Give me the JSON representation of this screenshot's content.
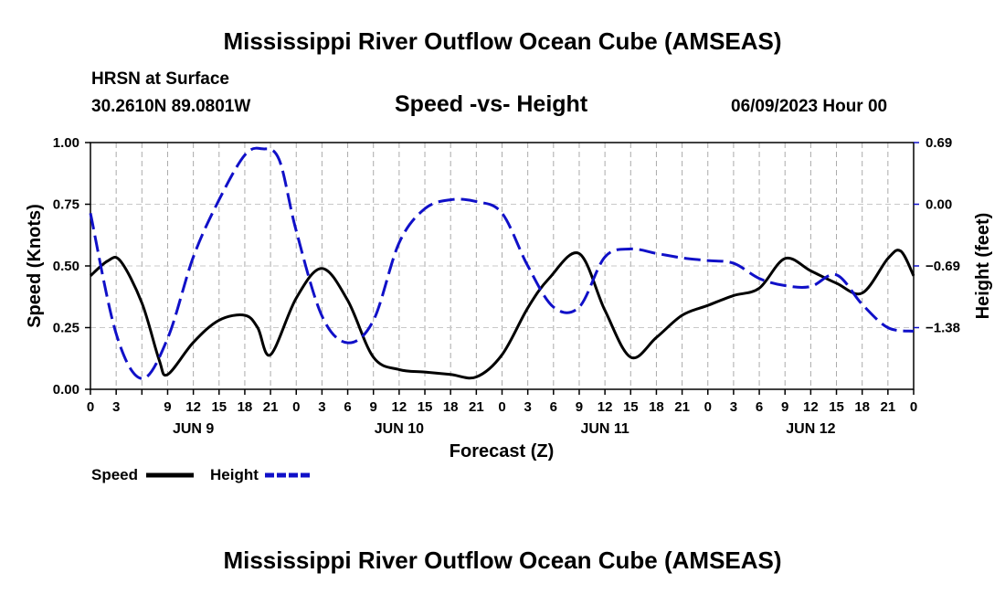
{
  "main_title": "Mississippi River Outflow Ocean Cube (AMSEAS)",
  "footer_title": "Mississippi River Outflow Ocean Cube (AMSEAS)",
  "station": {
    "name": "HRSN at Surface",
    "coords": "30.2610N  89.0801W"
  },
  "run_date": "06/09/2023 Hour 00",
  "colors": {
    "speed": "#000000",
    "height": "#1010c8",
    "grid": "#aaaaaa"
  },
  "chart_data": {
    "type": "line",
    "title": "Speed -vs- Height",
    "xlabel": "Forecast (Z)",
    "ylabel": "Speed (Knots)",
    "y2label": "Height (feet)",
    "x_range": [
      0,
      96
    ],
    "ylim": [
      0,
      1.0
    ],
    "y2lim": [
      -2.07,
      0.69
    ],
    "y_ticks": [
      0,
      0.25,
      0.5,
      0.75,
      1.0
    ],
    "y_tick_labels": [
      "0.00",
      "0.25",
      "0.50",
      "0.75",
      "1.00"
    ],
    "y2_ticks": [
      0.69,
      0.0,
      -0.69,
      -1.38
    ],
    "y2_tick_labels": [
      "0.69",
      "0.00",
      "−0.69",
      "−1.38"
    ],
    "x_tick_labels": [
      "0",
      "3",
      "9",
      "12",
      "15",
      "18",
      "21",
      "0",
      "3",
      "6",
      "9",
      "12",
      "15",
      "18",
      "21",
      "0",
      "3",
      "6",
      "9",
      "12",
      "15",
      "18",
      "21",
      "0",
      "3",
      "6",
      "9",
      "12",
      "15",
      "18",
      "21",
      "0"
    ],
    "day_labels": [
      {
        "label": "JUN 9",
        "hour": 12
      },
      {
        "label": "JUN 10",
        "hour": 36
      },
      {
        "label": "JUN 11",
        "hour": 60
      },
      {
        "label": "JUN 12",
        "hour": 84
      }
    ],
    "legend": [
      "Speed",
      "Height"
    ],
    "series": [
      {
        "name": "Speed",
        "axis": "left",
        "style": "solid",
        "x": [
          0,
          2,
          3.5,
          6,
          8,
          9,
          12,
          15,
          18,
          19.5,
          21,
          24,
          27,
          30,
          33,
          36,
          39,
          42,
          45,
          48,
          51,
          53.5,
          57,
          60,
          63,
          66,
          69,
          72,
          75,
          78,
          81,
          84,
          87,
          90,
          93,
          94.5,
          96
        ],
        "values": [
          0.46,
          0.52,
          0.52,
          0.35,
          0.12,
          0.06,
          0.19,
          0.28,
          0.3,
          0.25,
          0.14,
          0.37,
          0.49,
          0.36,
          0.13,
          0.08,
          0.07,
          0.06,
          0.05,
          0.14,
          0.33,
          0.45,
          0.55,
          0.32,
          0.13,
          0.21,
          0.3,
          0.34,
          0.38,
          0.41,
          0.53,
          0.48,
          0.43,
          0.39,
          0.53,
          0.56,
          0.46
        ]
      },
      {
        "name": "Height",
        "axis": "right",
        "style": "dashed",
        "x": [
          0,
          3,
          6,
          9,
          12,
          15,
          18,
          20,
          22,
          24,
          27,
          30,
          33,
          36,
          39,
          42,
          45,
          48,
          51,
          54,
          57,
          60,
          63,
          66,
          69,
          72,
          75,
          78,
          81,
          84,
          87,
          90,
          93,
          96
        ],
        "values": [
          -0.1,
          -1.45,
          -1.95,
          -1.5,
          -0.59,
          0.05,
          0.55,
          0.62,
          0.5,
          -0.3,
          -1.25,
          -1.55,
          -1.3,
          -0.43,
          -0.05,
          0.05,
          0.03,
          -0.1,
          -0.69,
          -1.15,
          -1.15,
          -0.59,
          -0.5,
          -0.55,
          -0.6,
          -0.63,
          -0.66,
          -0.83,
          -0.91,
          -0.92,
          -0.79,
          -1.12,
          -1.38,
          -1.42
        ]
      }
    ]
  }
}
